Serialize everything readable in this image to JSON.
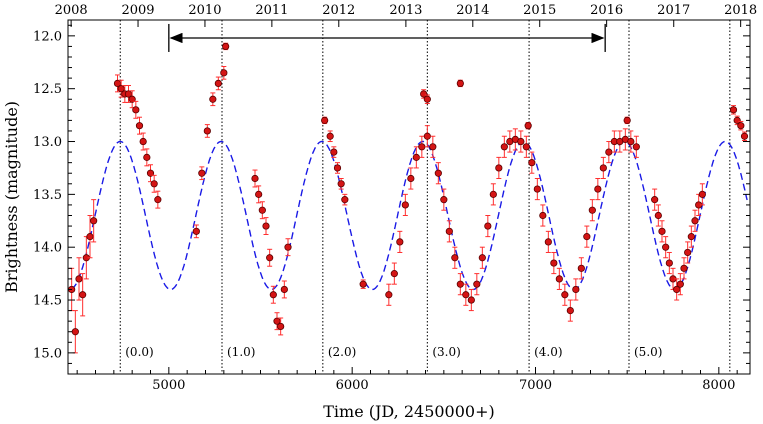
{
  "chart_data": {
    "type": "scatter",
    "title": "",
    "xlabel": "Time (JD, 2450000+)",
    "ylabel": "Brightness (magnitude)",
    "xlim": [
      4450,
      8170
    ],
    "ylim": [
      15.2,
      11.85
    ],
    "y_inverted": true,
    "x_ticks": [
      5000,
      6000,
      7000,
      8000
    ],
    "y_ticks": [
      12.0,
      12.5,
      13.0,
      13.5,
      14.0,
      14.5,
      15.0
    ],
    "y_tick_labels": [
      "12.0",
      "12.5",
      "13.0",
      "13.5",
      "14.0",
      "14.5",
      "15.0"
    ],
    "year_ticks": [
      {
        "label": "2008",
        "jd": 4467
      },
      {
        "label": "2009",
        "jd": 4832
      },
      {
        "label": "2010",
        "jd": 5197
      },
      {
        "label": "2011",
        "jd": 5562
      },
      {
        "label": "2012",
        "jd": 5927
      },
      {
        "label": "2013",
        "jd": 6293
      },
      {
        "label": "2014",
        "jd": 6658
      },
      {
        "label": "2015",
        "jd": 7023
      },
      {
        "label": "2016",
        "jd": 7388
      },
      {
        "label": "2017",
        "jd": 7754
      },
      {
        "label": "2018",
        "jd": 8119
      }
    ],
    "phase_markers": [
      {
        "label": "(0.0)",
        "jd": 4735
      },
      {
        "label": "(1.0)",
        "jd": 5290
      },
      {
        "label": "(2.0)",
        "jd": 5840
      },
      {
        "label": "(3.0)",
        "jd": 6410
      },
      {
        "label": "(4.0)",
        "jd": 6965
      },
      {
        "label": "(5.0)",
        "jd": 7510
      },
      {
        "label": "",
        "jd": 8060
      }
    ],
    "span_arrow": {
      "x_start": 5000,
      "x_end": 7380,
      "y": 12.02
    },
    "model_curve": {
      "name": "sinusoidal model",
      "color": "#1a1ae6",
      "style": "dashed",
      "mean": 13.7,
      "amplitude": 0.7,
      "period_days": 550,
      "max_at_jd": 4735,
      "x_range": [
        4470,
        8155
      ]
    },
    "observations": {
      "name": "observations",
      "marker_color": "#d41414",
      "errorbar_color": "#ff2e2e",
      "segments": [
        {
          "x": [
            4470,
            4490,
            4510,
            4530,
            4550,
            4570,
            4590
          ],
          "y": [
            14.4,
            14.8,
            14.3,
            14.45,
            14.1,
            13.9,
            13.75
          ],
          "err": 0.2
        },
        {
          "x": [
            4720,
            4740,
            4760,
            4780,
            4800,
            4820,
            4840,
            4860,
            4880,
            4900,
            4920,
            4940
          ],
          "y": [
            12.45,
            12.5,
            12.55,
            12.55,
            12.6,
            12.7,
            12.85,
            13.0,
            13.15,
            13.3,
            13.4,
            13.55
          ],
          "err": 0.08
        },
        {
          "x": [
            5150,
            5180,
            5210,
            5240,
            5270,
            5300
          ],
          "y": [
            13.85,
            13.3,
            12.9,
            12.6,
            12.45,
            12.35
          ],
          "err": 0.06
        },
        {
          "x": [
            5310
          ],
          "y": [
            12.1
          ],
          "err": 0.03
        },
        {
          "x": [
            5470,
            5490,
            5510,
            5530,
            5550,
            5570,
            5590,
            5610,
            5630,
            5650
          ],
          "y": [
            13.35,
            13.5,
            13.65,
            13.8,
            14.1,
            14.45,
            14.7,
            14.75,
            14.4,
            14.0
          ],
          "err": 0.08
        },
        {
          "x": [
            5850
          ],
          "y": [
            12.8
          ],
          "err": 0.03
        },
        {
          "x": [
            5880,
            5900,
            5920,
            5940,
            5960
          ],
          "y": [
            12.95,
            13.1,
            13.25,
            13.4,
            13.55
          ],
          "err": 0.05
        },
        {
          "x": [
            6060
          ],
          "y": [
            14.35
          ],
          "err": 0.04
        },
        {
          "x": [
            6200,
            6230,
            6260,
            6290,
            6320,
            6350,
            6380,
            6410,
            6440,
            6470,
            6500,
            6530,
            6560,
            6590,
            6620,
            6650,
            6680,
            6710,
            6740,
            6770,
            6800,
            6830,
            6860,
            6890,
            6920,
            6950,
            6980,
            7010,
            7040,
            7070,
            7100,
            7130,
            7160,
            7190,
            7220,
            7250,
            7280,
            7310,
            7340,
            7370,
            7400,
            7430,
            7460,
            7490,
            7520,
            7550
          ],
          "y": [
            14.45,
            14.25,
            13.95,
            13.6,
            13.35,
            13.15,
            13.05,
            12.95,
            13.05,
            13.3,
            13.55,
            13.85,
            14.1,
            14.35,
            14.45,
            14.5,
            14.35,
            14.1,
            13.8,
            13.5,
            13.25,
            13.05,
            13.0,
            12.98,
            13.0,
            13.05,
            13.2,
            13.45,
            13.7,
            13.95,
            14.15,
            14.3,
            14.45,
            14.6,
            14.4,
            14.2,
            13.9,
            13.65,
            13.45,
            13.25,
            13.1,
            13.0,
            13.0,
            12.98,
            13.0,
            13.05
          ],
          "err": 0.1
        },
        {
          "x": [
            6390,
            6410
          ],
          "y": [
            12.55,
            12.6
          ],
          "err": 0.04
        },
        {
          "x": [
            6590
          ],
          "y": [
            12.45
          ],
          "err": 0.03
        },
        {
          "x": [
            6960
          ],
          "y": [
            12.85
          ],
          "err": 0.03
        },
        {
          "x": [
            7500
          ],
          "y": [
            12.8
          ],
          "err": 0.03
        },
        {
          "x": [
            7650,
            7670,
            7690,
            7710,
            7730,
            7750,
            7770,
            7790,
            7810,
            7830,
            7850,
            7870,
            7890,
            7910
          ],
          "y": [
            13.55,
            13.7,
            13.85,
            14.0,
            14.15,
            14.3,
            14.4,
            14.35,
            14.2,
            14.05,
            13.9,
            13.75,
            13.6,
            13.5
          ],
          "err": 0.1
        },
        {
          "x": [
            8080,
            8100,
            8120,
            8140
          ],
          "y": [
            12.7,
            12.8,
            12.85,
            12.95
          ],
          "err": 0.04
        }
      ]
    }
  }
}
